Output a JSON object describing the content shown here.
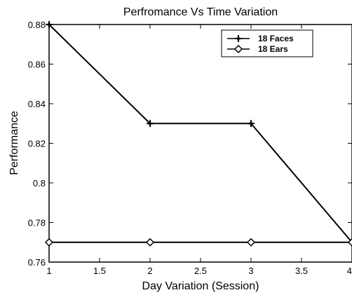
{
  "chart_data": {
    "type": "line",
    "title": "Perfromance Vs Time Variation",
    "xlabel": "Day Variation (Session)",
    "ylabel": "Performance",
    "xlim": [
      1,
      4
    ],
    "ylim": [
      0.76,
      0.88
    ],
    "xticks": [
      "1",
      "1.5",
      "2",
      "2.5",
      "3",
      "3.5",
      "4"
    ],
    "yticks": [
      "0.76",
      "0.78",
      "0.8",
      "0.82",
      "0.84",
      "0.86",
      "0.88"
    ],
    "grid": false,
    "legend_position": "top-right",
    "x": [
      1,
      2,
      3,
      4
    ],
    "series": [
      {
        "name": "18 Faces",
        "marker": "star",
        "color": "#000000",
        "values": [
          0.88,
          0.83,
          0.83,
          0.77
        ]
      },
      {
        "name": "18 Ears",
        "marker": "diamond",
        "color": "#000000",
        "values": [
          0.77,
          0.77,
          0.77,
          0.77
        ]
      }
    ]
  }
}
